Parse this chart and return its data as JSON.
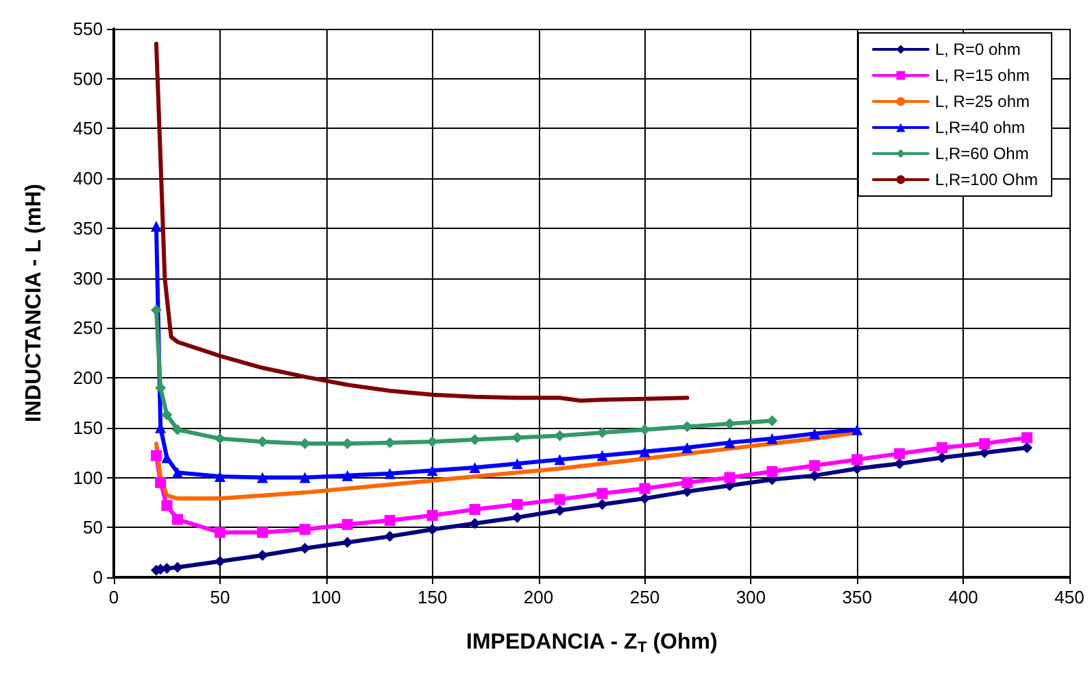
{
  "chart_data": {
    "type": "line",
    "xlabel": "IMPEDANCIA - Z$_{T}$ (Ohm)",
    "ylabel": "INDUCTANCIA - L (mH)",
    "xlim": [
      0,
      450
    ],
    "xticks": [
      0,
      50,
      100,
      150,
      200,
      250,
      300,
      350,
      400,
      450
    ],
    "ylim": [
      0,
      550
    ],
    "yticks": [
      0,
      50,
      100,
      150,
      200,
      250,
      300,
      350,
      400,
      450,
      500,
      550
    ],
    "grid": true,
    "legend": "top right",
    "series": [
      {
        "name": "L, R=0 ohm",
        "color": "#000080",
        "marker": "diamond",
        "x": [
          20,
          22,
          25,
          30,
          50,
          70,
          90,
          110,
          130,
          150,
          170,
          190,
          210,
          230,
          250,
          270,
          290,
          310,
          330,
          350,
          370,
          390,
          410,
          430
        ],
        "values": [
          7,
          8,
          9,
          10,
          16,
          22,
          29,
          35,
          41,
          48,
          54,
          60,
          67,
          73,
          79,
          86,
          92,
          98,
          102,
          109,
          114,
          120,
          125,
          130
        ]
      },
      {
        "name": "L, R=15 ohm",
        "color": "#ff00ff",
        "marker": "square",
        "x": [
          20,
          22,
          25,
          30,
          50,
          70,
          90,
          110,
          130,
          150,
          170,
          190,
          210,
          230,
          250,
          270,
          290,
          310,
          330,
          350,
          370,
          390,
          410,
          430
        ],
        "values": [
          122,
          95,
          72,
          58,
          45,
          45,
          48,
          53,
          57,
          62,
          68,
          73,
          78,
          84,
          89,
          95,
          100,
          106,
          112,
          118,
          124,
          130,
          134,
          140
        ]
      },
      {
        "name": "L, R=25 ohm",
        "color": "#ff6600",
        "marker": "none",
        "x": [
          20,
          22,
          25,
          30,
          50,
          70,
          90,
          110,
          130,
          150,
          170,
          190,
          210,
          230,
          250,
          270,
          290,
          310,
          330,
          350
        ],
        "values": [
          134,
          100,
          82,
          79,
          79,
          82,
          85,
          89,
          93,
          97,
          101,
          105,
          109,
          114,
          119,
          124,
          129,
          134,
          139,
          145
        ]
      },
      {
        "name": "L,R=40 ohm",
        "color": "#0000ff",
        "marker": "triangle",
        "x": [
          20,
          22,
          25,
          30,
          50,
          70,
          90,
          110,
          130,
          150,
          170,
          190,
          210,
          230,
          250,
          270,
          290,
          310,
          330,
          350
        ],
        "values": [
          352,
          150,
          120,
          105,
          101,
          100,
          100,
          102,
          104,
          107,
          110,
          114,
          118,
          122,
          126,
          130,
          135,
          139,
          144,
          148
        ]
      },
      {
        "name": "L,R=60 Ohm",
        "color": "#339966",
        "marker": "diamond",
        "x": [
          20,
          22,
          25,
          30,
          50,
          70,
          90,
          110,
          130,
          150,
          170,
          190,
          210,
          230,
          250,
          270,
          290,
          310
        ],
        "values": [
          268,
          190,
          163,
          148,
          139,
          136,
          134,
          134,
          135,
          136,
          138,
          140,
          142,
          145,
          148,
          151,
          154,
          157
        ]
      },
      {
        "name": "L,R=100 Ohm",
        "color": "#800000",
        "marker": "none",
        "x": [
          20,
          22,
          24,
          27,
          30,
          50,
          70,
          90,
          110,
          130,
          150,
          170,
          190,
          210,
          220,
          230,
          250,
          270
        ],
        "values": [
          535,
          420,
          300,
          241,
          236,
          222,
          210,
          201,
          193,
          187,
          183,
          181,
          180,
          180,
          177,
          178,
          179,
          180
        ]
      }
    ]
  }
}
